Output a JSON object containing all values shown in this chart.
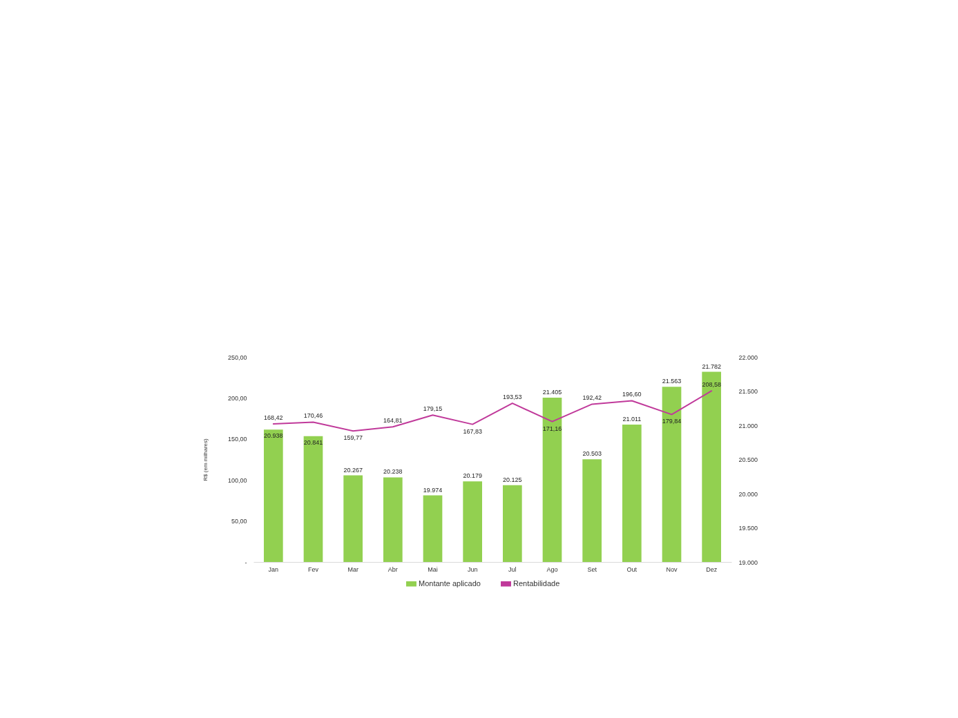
{
  "chart_data": {
    "type": "bar",
    "categories": [
      "Jan",
      "Fev",
      "Mar",
      "Abr",
      "Mai",
      "Jun",
      "Jul",
      "Ago",
      "Set",
      "Out",
      "Nov",
      "Dez"
    ],
    "ylabel": "R$ (em milhares)",
    "ylim": [
      0,
      250
    ],
    "yticks": [
      {
        "value": 0,
        "label": "-"
      },
      {
        "value": 50,
        "label": "50,00"
      },
      {
        "value": 100,
        "label": "100,00"
      },
      {
        "value": 150,
        "label": "150,00"
      },
      {
        "value": 200,
        "label": "200,00"
      },
      {
        "value": 250,
        "label": "250,00"
      }
    ],
    "y2lim": [
      19000,
      22000
    ],
    "y2ticks": [
      {
        "value": 19000,
        "label": "19.000"
      },
      {
        "value": 19500,
        "label": "19.500"
      },
      {
        "value": 20000,
        "label": "20.000"
      },
      {
        "value": 20500,
        "label": "20.500"
      },
      {
        "value": 21000,
        "label": "21.000"
      },
      {
        "value": 21500,
        "label": "21.500"
      },
      {
        "value": 22000,
        "label": "22.000"
      }
    ],
    "grid": false,
    "legend": "bottom",
    "series": [
      {
        "name": "Montante aplicado",
        "axis": "y2",
        "color": "#92d050",
        "values": [
          20938,
          20841,
          20267,
          20238,
          19974,
          20179,
          20125,
          21405,
          20503,
          21011,
          21563,
          21782
        ],
        "value_labels": [
          "20.938",
          "20.841",
          "20.267",
          "20.238",
          "19.974",
          "20.179",
          "20.125",
          "21.405",
          "20.503",
          "21.011",
          "21.563",
          "21.782"
        ]
      },
      {
        "name": "Rentabilidade",
        "type": "line",
        "color": "#c0399a",
        "values": [
          168.42,
          170.46,
          159.77,
          164.81,
          179.15,
          167.83,
          193.53,
          171.16,
          192.42,
          196.6,
          179.84,
          208.58
        ],
        "value_labels": [
          "168,42",
          "170,46",
          "159,77",
          "164,81",
          "179,15",
          "167,83",
          "193,53",
          "171,16",
          "192,42",
          "196,60",
          "179,84",
          "208,58"
        ]
      }
    ]
  }
}
